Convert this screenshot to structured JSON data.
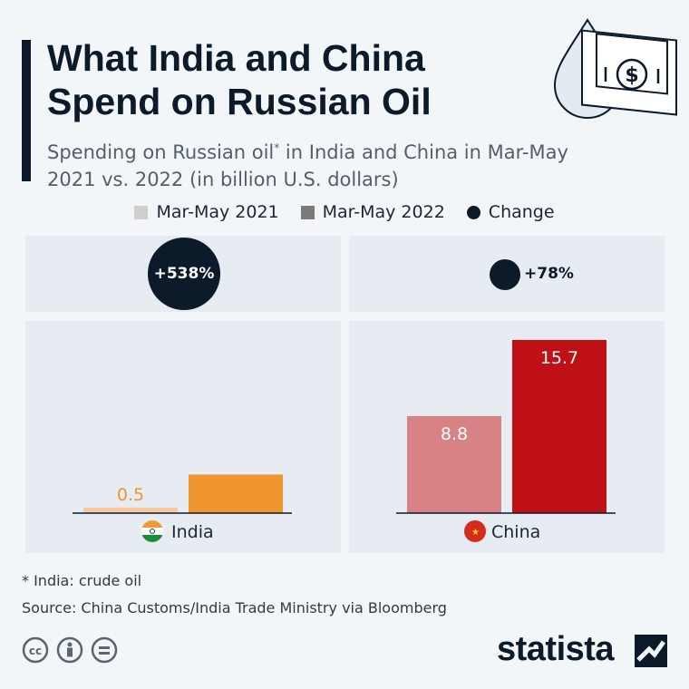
{
  "header": {
    "title_line1": "What India and China",
    "title_line2": "Spend on Russian Oil",
    "subtitle_line1": "Spending on Russian oil",
    "subtitle_sup": "*",
    "subtitle_line1_rest": " in India and China in Mar-May",
    "subtitle_line2": "2021 vs. 2022  (in billion U.S. dollars)",
    "hero_icon": "oil-drop-money-icon"
  },
  "legend": {
    "items": [
      {
        "label": "Mar-May 2021",
        "color": "#cfcfcf",
        "shape": "square"
      },
      {
        "label": "Mar-May 2022",
        "color": "#7a7a7a",
        "shape": "square"
      },
      {
        "label": "Change",
        "color": "#0c1a2a",
        "shape": "circle"
      }
    ]
  },
  "chart_data": {
    "type": "bar",
    "categories": [
      "India",
      "China"
    ],
    "series": [
      {
        "name": "Mar-May 2021",
        "values": [
          0.5,
          8.8
        ]
      },
      {
        "name": "Mar-May 2022",
        "values": [
          3.5,
          15.7
        ]
      }
    ],
    "change": [
      "+538%",
      "+78%"
    ],
    "change_values": [
      538,
      78
    ],
    "colors": {
      "India": {
        "2021": "#f5c9a0",
        "2022": "#f0962e",
        "label": "#f0962e"
      },
      "China": {
        "2021": "#d98286",
        "2022": "#bf1115",
        "label": "#ffffff"
      }
    },
    "flags": [
      "india-flag-icon",
      "china-flag-icon"
    ],
    "ylim": [
      0,
      17
    ],
    "title": "What India and China Spend on Russian Oil",
    "xlabel": "",
    "ylabel": ""
  },
  "labels": {
    "india_2021": "0.5",
    "india_2022": "3.5",
    "china_2021": "8.8",
    "china_2022": "15.7",
    "india": "India",
    "china": "China",
    "india_change": "+538%",
    "china_change": "+78%"
  },
  "footer": {
    "note": "* India: crude oil",
    "source": "Source: China Customs/India Trade Ministry via Bloomberg",
    "brand": "statista",
    "license_icons": [
      "cc-icon",
      "attribution-icon",
      "no-derivatives-icon"
    ]
  }
}
